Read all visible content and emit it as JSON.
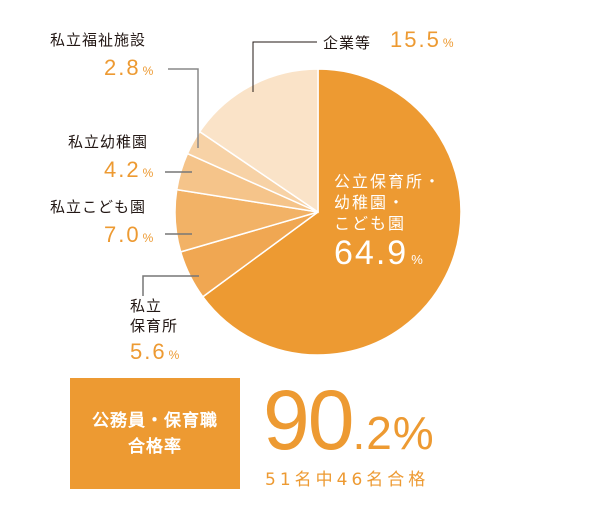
{
  "chart_data": {
    "type": "pie",
    "title": "",
    "slices": [
      {
        "label": "公立保育所・幼稚園・こども園",
        "value": 64.9,
        "color": "#ED9A32"
      },
      {
        "label": "私立保育所",
        "value": 5.6,
        "color": "#F0A752"
      },
      {
        "label": "私立こども園",
        "value": 7.0,
        "color": "#F2B266"
      },
      {
        "label": "私立幼稚園",
        "value": 4.2,
        "color": "#F5C48A"
      },
      {
        "label": "私立福祉施設",
        "value": 2.8,
        "color": "#F7D2A6"
      },
      {
        "label": "企業等",
        "value": 15.5,
        "color": "#FAE3C8"
      }
    ],
    "unit": "%"
  },
  "labels": {
    "public": {
      "line1": "公立保育所・",
      "line2": "幼稚園・",
      "line3": "こども園",
      "value": "64.9",
      "unit": "%"
    },
    "company": {
      "name": "企業等",
      "value": "15.5",
      "unit": "%"
    },
    "welfare": {
      "name": "私立福祉施設",
      "value": "2.8",
      "unit": "%"
    },
    "kindergarten": {
      "name": "私立幼稚園",
      "value": "4.2",
      "unit": "%"
    },
    "kodomoen": {
      "name": "私立こども園",
      "value": "7.0",
      "unit": "%"
    },
    "nursery": {
      "line1": "私立",
      "line2": "保育所",
      "value": "5.6",
      "unit": "%"
    }
  },
  "summary": {
    "box_line1": "公務員・保育職",
    "box_line2": "合格率",
    "rate_int": "90",
    "rate_dec": ".2%",
    "detail": "51名中46名合格"
  }
}
